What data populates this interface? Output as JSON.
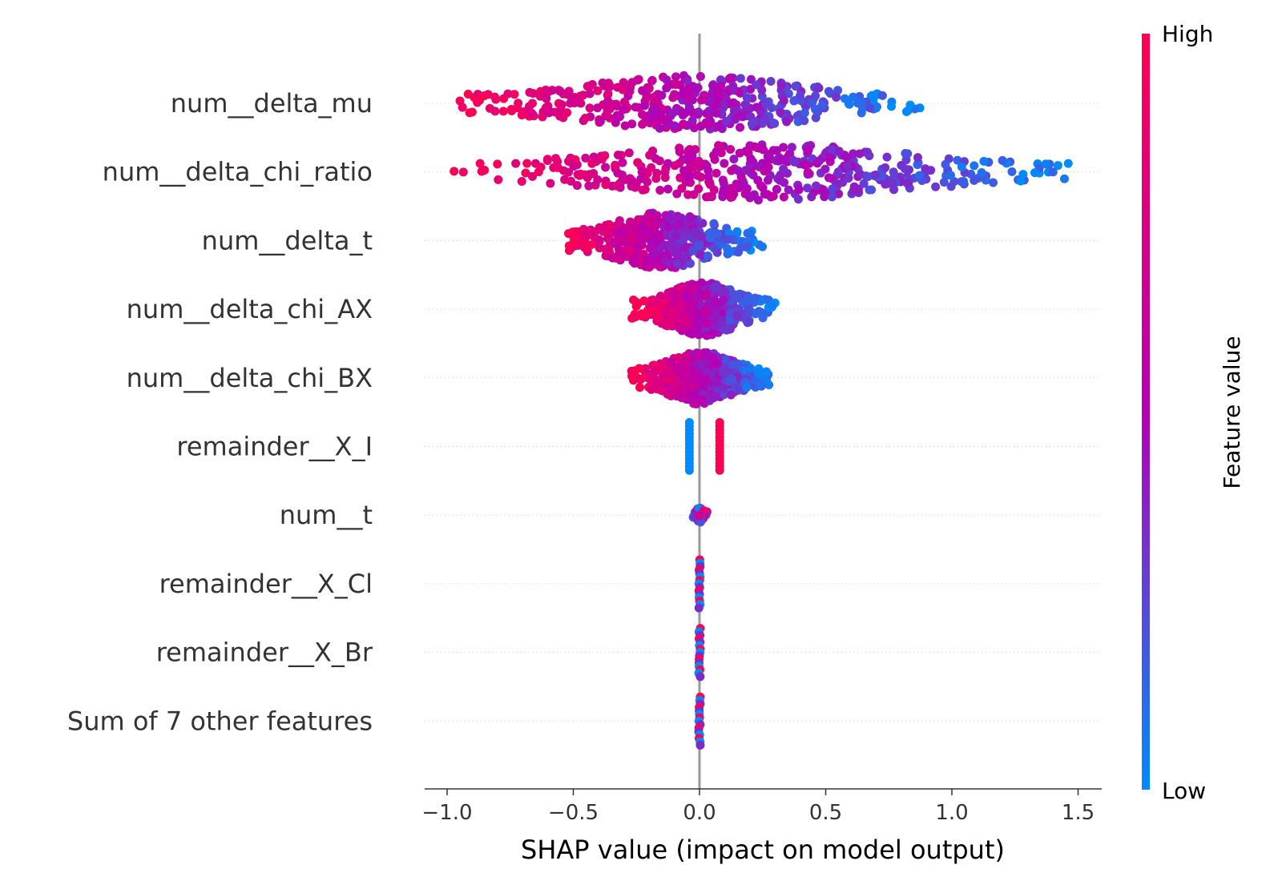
{
  "chart_data": {
    "type": "scatter",
    "subtype": "shap-beeswarm-summary",
    "xlabel": "SHAP value (impact on model output)",
    "xlim": [
      -1.1,
      1.6
    ],
    "x_ticks": [
      -1.0,
      -0.5,
      0.0,
      0.5,
      1.0,
      1.5
    ],
    "x_tick_labels": [
      "−1.0",
      "−0.5",
      "0.0",
      "0.5",
      "1.0",
      "1.5"
    ],
    "zero_line": 0.0,
    "grid": "dotted horizontal lines per feature",
    "colorbar": {
      "title": "Feature value",
      "high_label": "High",
      "low_label": "Low",
      "high_color": "#ff0052",
      "mid_color": "#b400b4",
      "low_color": "#008bfb"
    },
    "features": [
      {
        "name": "num__delta_mu",
        "shap_min": -0.96,
        "shap_max": 0.9,
        "corr": -1,
        "spread": 0.9
      },
      {
        "name": "num__delta_chi_ratio",
        "shap_min": -0.98,
        "shap_max": 1.47,
        "corr": -1,
        "spread": 0.9
      },
      {
        "name": "num__delta_t",
        "shap_min": -0.55,
        "shap_max": 0.25,
        "corr": -1,
        "spread": 0.9
      },
      {
        "name": "num__delta_chi_AX",
        "shap_min": -0.27,
        "shap_max": 0.3,
        "corr": -1,
        "spread": 0.85
      },
      {
        "name": "num__delta_chi_BX",
        "shap_min": -0.27,
        "shap_max": 0.28,
        "corr": -1,
        "spread": 0.85
      },
      {
        "name": "remainder__X_I",
        "shap_min": -0.04,
        "shap_max": 0.08,
        "corr": 0,
        "spread": 0.0
      },
      {
        "name": "num__t",
        "shap_min": -0.03,
        "shap_max": 0.03,
        "corr": 0,
        "spread": 0.3
      },
      {
        "name": "remainder__X_Cl",
        "shap_min": -0.005,
        "shap_max": 0.005,
        "corr": 0,
        "spread": 0.0
      },
      {
        "name": "remainder__X_Br",
        "shap_min": -0.005,
        "shap_max": 0.005,
        "corr": 0,
        "spread": 0.0
      },
      {
        "name": "Sum of 7 other features",
        "shap_min": -0.005,
        "shap_max": 0.005,
        "corr": 0,
        "spread": 0.0
      }
    ]
  }
}
